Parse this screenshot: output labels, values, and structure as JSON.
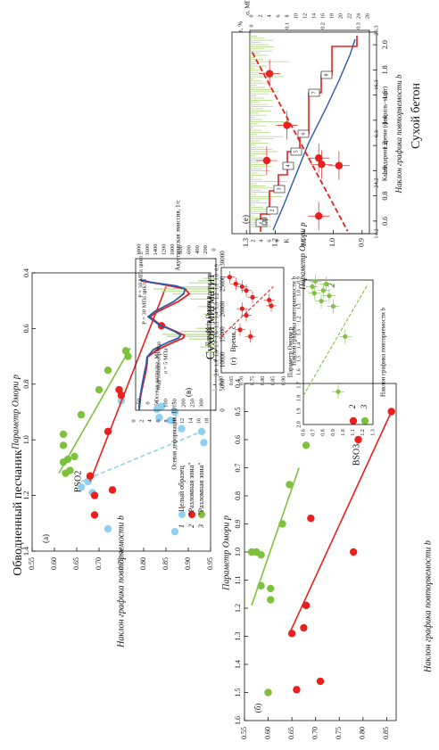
{
  "colors": {
    "red": "#e8201e",
    "green": "#7ec13c",
    "lightblue": "#8fd0f0",
    "blue": "#2a5aa8",
    "lightgreen": "#b7dd8c",
    "black": "#111111"
  },
  "sections": {
    "left_title": "Обводненный песчаник",
    "mid_title": "Сухой мигматит",
    "right_title": "Сухой бетон"
  },
  "panel_labels": {
    "a": "(а)",
    "b": "(б)",
    "v": "(в)",
    "g": "(г)",
    "d": "(д)",
    "e": "(е)"
  },
  "chart_data": [
    {
      "id": "a",
      "type": "scatter",
      "title": "BSO2",
      "xlabel": "Параметр Омори p",
      "ylabel": "Наклон графика повторяемости b",
      "xlim": [
        1.4,
        0.4
      ],
      "ylim": [
        0.55,
        0.95
      ],
      "xticks": [
        "1.4",
        "1.2",
        "1.0",
        "0.8",
        "0.6",
        "0.4"
      ],
      "yticks": [
        "0.55",
        "0.60",
        "0.65",
        "0.70",
        "0.75",
        "0.80",
        "0.85",
        "0.90",
        "0.95"
      ],
      "legend": [
        {
          "num": "1",
          "text": "Целый образец"
        },
        {
          "num": "2",
          "text": "\"Разломная зона\""
        },
        {
          "num": "3",
          "text": "\"Разломная зона\""
        }
      ],
      "series": [
        {
          "color": "lightblue",
          "points": [
            [
              1.33,
              0.87
            ],
            [
              1.32,
              0.72
            ],
            [
              1.19,
              0.685
            ],
            [
              1.17,
              0.66
            ],
            [
              1.15,
              0.675
            ],
            [
              1.01,
              0.935
            ],
            [
              0.97,
              0.93
            ],
            [
              0.96,
              0.885
            ],
            [
              0.93,
              0.86
            ],
            [
              0.92,
              0.835
            ],
            [
              0.9,
              0.87
            ],
            [
              0.89,
              0.83
            ],
            [
              0.88,
              0.84
            ],
            [
              0.86,
              0.75
            ]
          ],
          "fit": [
            [
              1.15,
              0.66
            ],
            [
              0.97,
              0.93
            ]
          ]
        },
        {
          "color": "red",
          "points": [
            [
              1.27,
              0.69
            ],
            [
              1.2,
              0.69
            ],
            [
              1.18,
              0.73
            ],
            [
              1.13,
              0.68
            ],
            [
              0.97,
              0.72
            ],
            [
              0.84,
              0.75
            ],
            [
              0.82,
              0.745
            ],
            [
              0.59,
              0.84
            ]
          ],
          "fit": [
            [
              1.15,
              0.68
            ],
            [
              0.45,
              0.85
            ]
          ]
        },
        {
          "color": "green",
          "points": [
            [
              1.12,
              0.625
            ],
            [
              1.11,
              0.635
            ],
            [
              1.08,
              0.62
            ],
            [
              1.07,
              0.63
            ],
            [
              1.06,
              0.645
            ],
            [
              1.02,
              0.62
            ],
            [
              0.98,
              0.62
            ],
            [
              0.91,
              0.66
            ],
            [
              0.82,
              0.7
            ],
            [
              0.75,
              0.72
            ],
            [
              0.7,
              0.765
            ],
            [
              0.68,
              0.76
            ]
          ],
          "fit": [
            [
              1.12,
              0.61
            ],
            [
              0.67,
              0.77
            ]
          ]
        }
      ]
    },
    {
      "id": "b",
      "type": "scatter",
      "title": "BSO3",
      "xlabel": "Параметр Омори p",
      "ylabel": "Наклон графика повторяемости b",
      "xlim": [
        1.6,
        0.4
      ],
      "ylim": [
        0.55,
        0.87
      ],
      "xticks": [
        "1.6",
        "1.5",
        "1.4",
        "1.3",
        "1.2",
        "1.1",
        "1.0",
        "0.9",
        "0.8",
        "0.7",
        "0.6",
        "0.5",
        "0.4"
      ],
      "yticks": [
        "0.55",
        "0.60",
        "0.65",
        "0.70",
        "0.75",
        "0.80",
        "0.85"
      ],
      "legend": [
        {
          "num": "2",
          "text": ""
        },
        {
          "num": "3",
          "text": ""
        }
      ],
      "series": [
        {
          "color": "red",
          "points": [
            [
              1.49,
              0.66
            ],
            [
              1.46,
              0.71
            ],
            [
              1.29,
              0.65
            ],
            [
              1.27,
              0.675
            ],
            [
              1.19,
              0.68
            ],
            [
              1.0,
              0.78
            ],
            [
              0.88,
              0.69
            ],
            [
              0.6,
              0.79
            ],
            [
              0.5,
              0.86
            ]
          ],
          "fit": [
            [
              1.29,
              0.645
            ],
            [
              0.5,
              0.86
            ]
          ]
        },
        {
          "color": "green",
          "points": [
            [
              1.5,
              0.6
            ],
            [
              1.17,
              0.605
            ],
            [
              1.13,
              0.605
            ],
            [
              1.12,
              0.585
            ],
            [
              1.01,
              0.585
            ],
            [
              1.0,
              0.565
            ],
            [
              1.0,
              0.575
            ],
            [
              0.9,
              0.63
            ],
            [
              0.76,
              0.645
            ],
            [
              0.62,
              0.68
            ]
          ],
          "fit": [
            [
              1.19,
              0.565
            ],
            [
              0.7,
              0.665
            ]
          ]
        }
      ]
    },
    {
      "id": "v",
      "type": "line",
      "xlabel": "Время, с",
      "xlim": [
        0,
        30000
      ],
      "xticks": [
        "0",
        "5000",
        "10000",
        "15000",
        "20000",
        "25000",
        "30000"
      ],
      "y_left_label_outer": "Осевая деформация, 10⁻³",
      "y_left_outer_ticks": [
        "0",
        "2",
        "4",
        "6",
        "8",
        "10",
        "12",
        "14",
        "16",
        "18"
      ],
      "y_left_label_inner": "Осевая нагрузка, МПа",
      "y_left_inner_ticks": [
        "−50",
        "0",
        "50",
        "100",
        "150",
        "200",
        "250",
        "300"
      ],
      "y_right_label": "Акустическая эмиссия, 1/с",
      "y_right_ticks": [
        "0",
        "200",
        "400",
        "600",
        "800",
        "1000",
        "1200",
        "1400",
        "1600",
        "1800"
      ],
      "annotations": [
        "подготовка образца",
        "σ = 5 МПа",
        "P = 30 МПа цикл 1",
        "P = 30 МПа цикл 2"
      ],
      "series": [
        {
          "name": "",
          "color": "red",
          "points": [
            [
              0,
              0
            ],
            [
              2500,
              0.3
            ],
            [
              5000,
              0.9
            ],
            [
              7500,
              1.6
            ],
            [
              9000,
              1.9
            ],
            [
              10500,
              2.0
            ],
            [
              12000,
              4.5
            ],
            [
              13500,
              8.5
            ],
            [
              14300,
              10.8
            ],
            [
              14800,
              11.0
            ],
            [
              15500,
              9.2
            ],
            [
              17000,
              5.0
            ],
            [
              18500,
              2.6
            ],
            [
              19500,
              4.5
            ],
            [
              21500,
              9.5
            ],
            [
              23000,
              12.2
            ],
            [
              24000,
              11.2
            ],
            [
              25000,
              5.0
            ],
            [
              25600,
              0.4
            ]
          ]
        },
        {
          "name": "",
          "color": "blue",
          "points": [
            [
              0,
              0
            ],
            [
              2500,
              0.2
            ],
            [
              5000,
              0.7
            ],
            [
              7500,
              1.3
            ],
            [
              9000,
              1.7
            ],
            [
              10500,
              1.9
            ],
            [
              12000,
              3.5
            ],
            [
              13500,
              7.2
            ],
            [
              14300,
              9.6
            ],
            [
              14900,
              10.1
            ],
            [
              15600,
              8.6
            ],
            [
              17000,
              4.7
            ],
            [
              18500,
              2.2
            ],
            [
              19500,
              3.7
            ],
            [
              21500,
              8.4
            ],
            [
              23000,
              10.8
            ],
            [
              24000,
              11.2
            ],
            [
              24600,
              9.0
            ],
            [
              25300,
              3.0
            ],
            [
              25800,
              0.2
            ]
          ]
        }
      ]
    },
    {
      "id": "g",
      "type": "scatter",
      "xlabel": "Параметр Омори p",
      "ylabel": "Наклон графика повторяемости b",
      "xlim": [
        2.0,
        0.9
      ],
      "ylim": [
        0.6,
        0.9
      ],
      "xticks": [
        "2.0",
        "1.9",
        "1.8",
        "1.7",
        "1.6",
        "1.5",
        "1.4",
        "1.3",
        "1.2",
        "1.1",
        "1.0",
        "0.9"
      ],
      "yticks": [
        "0.60",
        "0.65",
        "0.70",
        "0.75",
        "0.80",
        "0.85",
        "0.90"
      ],
      "series": [
        {
          "color": "red",
          "points": [
            [
              1.62,
              0.74
            ],
            [
              1.55,
              0.69
            ],
            [
              1.4,
              0.72
            ],
            [
              1.33,
              0.7
            ],
            [
              1.3,
              0.84
            ],
            [
              1.24,
              0.83
            ],
            [
              1.21,
              0.75
            ],
            [
              1.14,
              0.72
            ],
            [
              1.1,
              0.7
            ],
            [
              1.07,
              0.67
            ],
            [
              1.0,
              0.64
            ]
          ],
          "fit": [
            [
              1.62,
              0.6
            ],
            [
              1.1,
              0.85
            ]
          ]
        }
      ]
    },
    {
      "id": "g2",
      "type": "scatter",
      "xlabel": "Параметр Омори p",
      "ylabel": "Наклон графика повторяемости b",
      "xlim": [
        2.0,
        0.9
      ],
      "ylim": [
        0.6,
        1.3
      ],
      "xticks": [
        "2.0",
        "1.9",
        "1.8",
        "1.7",
        "1.6",
        "1.5",
        "1.4",
        "1.3",
        "1.2",
        "1.1",
        "1.0",
        "0.9"
      ],
      "yticks": [
        "0.6",
        "0.7",
        "0.8",
        "0.9",
        "1.0",
        "1.1",
        "1.2",
        "1.3"
      ],
      "legend_num": "2",
      "series": [
        {
          "color": "green",
          "points": [
            [
              1.75,
              0.95
            ],
            [
              1.33,
              1.02
            ],
            [
              1.1,
              0.9
            ],
            [
              1.06,
              0.78
            ],
            [
              1.02,
              0.86
            ],
            [
              1.0,
              0.71
            ],
            [
              0.98,
              0.8
            ],
            [
              0.95,
              0.69
            ],
            [
              0.93,
              0.83
            ],
            [
              0.91,
              0.72
            ]
          ],
          "fit": [
            [
              1.78,
              0.6
            ],
            [
              0.93,
              1.25
            ]
          ]
        }
      ]
    },
    {
      "id": "d",
      "type": "line",
      "xlabel": "Календарное время (февраль–март)",
      "xticks": [
        "14.2",
        "24.2",
        "6.3",
        "16.3",
        "26.3"
      ],
      "y_right_label": "σ, МПа",
      "y_right_ticks": [
        "0",
        "2",
        "4",
        "6",
        "8",
        "10",
        "12",
        "14",
        "16",
        "18",
        "20",
        "22",
        "24",
        "26"
      ],
      "y_strain_label": "ε, %",
      "y_strain_ticks": [
        "0",
        "0.1",
        "0.2",
        "0.3"
      ],
      "y_k_label": "K",
      "y_k_ticks": [
        "2",
        "4",
        "6",
        "8"
      ],
      "step_labels": [
        "1",
        "2",
        "3",
        "4",
        "5",
        "6",
        "7",
        "8"
      ]
    },
    {
      "id": "e",
      "type": "scatter",
      "xlabel": "Параметр Омори p",
      "ylabel": "Наклон графика повторяемости b",
      "xlim": [
        1.35,
        0.85
      ],
      "ylim": [
        0.5,
        2.1
      ],
      "xticks": [
        "1.3",
        "1.2",
        "1.1",
        "1.0",
        "0.9"
      ],
      "yticks": [
        "0.6",
        "0.8",
        "1.0",
        "1.2",
        "1.4",
        "1.6",
        "1.8",
        "2.0"
      ],
      "series": [
        {
          "color": "red",
          "points": [
            [
              1.22,
              1.77
            ],
            [
              1.16,
              1.36
            ],
            [
              1.05,
              1.1
            ],
            [
              1.04,
              1.05
            ],
            [
              0.98,
              1.04
            ],
            [
              1.23,
              1.08
            ],
            [
              1.05,
              0.64
            ]
          ],
          "fit": [
            [
              1.28,
              1.94
            ],
            [
              0.95,
              0.52
            ]
          ]
        }
      ]
    }
  ]
}
